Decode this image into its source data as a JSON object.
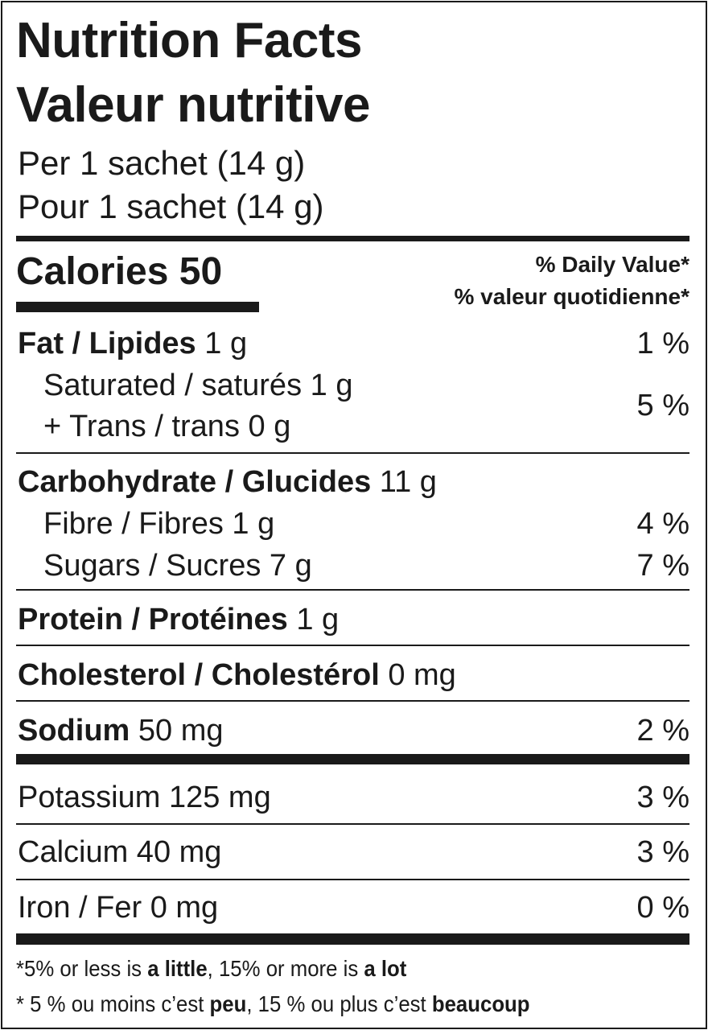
{
  "header": {
    "title_en": "Nutrition Facts",
    "title_fr": "Valeur nutritive",
    "serving_en": "Per 1 sachet (14 g)",
    "serving_fr": "Pour 1 sachet (14 g)"
  },
  "calories": {
    "label": "Calories",
    "value": "50"
  },
  "daily_value": {
    "en": "% Daily Value*",
    "fr": "% valeur quotidienne*"
  },
  "rows": {
    "fat": {
      "label": "Fat / Lipides",
      "amount": "1 g",
      "dv": "1 %"
    },
    "saturated": {
      "label": "Saturated / saturés 1 g"
    },
    "trans": {
      "label": "+ Trans / trans 0 g"
    },
    "sat_trans_dv": "5 %",
    "carb": {
      "label": "Carbohydrate / Glucides",
      "amount": "11 g"
    },
    "fibre": {
      "label": "Fibre / Fibres 1 g",
      "dv": "4 %"
    },
    "sugars": {
      "label": "Sugars / Sucres 7 g",
      "dv": "7 %"
    },
    "protein": {
      "label": "Protein / Protéines",
      "amount": "1 g"
    },
    "cholesterol": {
      "label": "Cholesterol / Cholestérol",
      "amount": "0 mg"
    },
    "sodium": {
      "label": "Sodium",
      "amount": "50 mg",
      "dv": "2 %"
    },
    "potassium": {
      "label": "Potassium 125 mg",
      "dv": "3 %"
    },
    "calcium": {
      "label": "Calcium 40 mg",
      "dv": "3 %"
    },
    "iron": {
      "label": "Iron / Fer 0 mg",
      "dv": "0 %"
    }
  },
  "footnote": {
    "en": {
      "a": "*5% or less is ",
      "b": "a little",
      "c": ", 15% or more is ",
      "d": "a lot"
    },
    "fr": {
      "a": "* 5 % ou moins c’est ",
      "b": "peu",
      "c": ", 15 % ou plus c’est ",
      "d": "beaucoup"
    }
  }
}
